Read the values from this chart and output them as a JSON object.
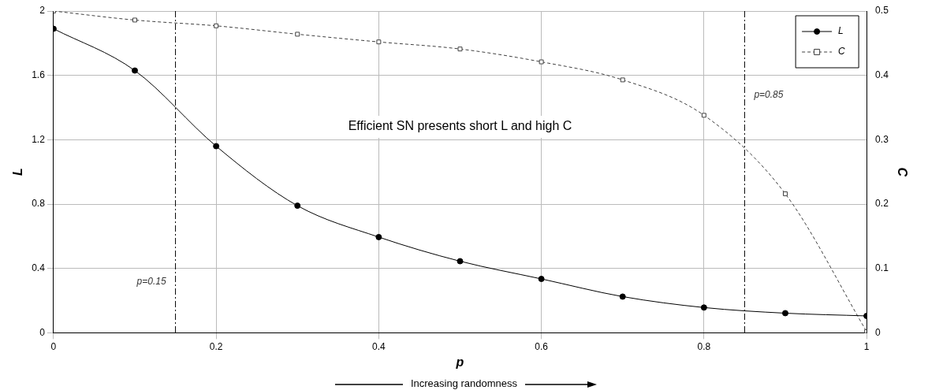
{
  "chart_data": {
    "type": "line",
    "x": [
      0,
      0.1,
      0.2,
      0.3,
      0.4,
      0.5,
      0.6,
      0.7,
      0.8,
      0.9,
      1
    ],
    "series": [
      {
        "name": "L",
        "color": "#000000",
        "marker": "circle",
        "line_style": "solid",
        "values": [
          1.89,
          1.63,
          1.16,
          0.79,
          0.595,
          0.445,
          0.335,
          0.225,
          0.157,
          0.122,
          0.105
        ]
      },
      {
        "name": "C",
        "color": "#404040",
        "marker": "square",
        "line_style": "dashed",
        "axis": "y2",
        "values": [
          0.5,
          0.486,
          0.477,
          0.464,
          0.452,
          0.441,
          0.421,
          0.393,
          0.338,
          0.216,
          0.002
        ]
      }
    ],
    "xlabel": "p",
    "ylabel": "L",
    "y2label": "C",
    "xlim": [
      0,
      1
    ],
    "xticks": [
      0,
      0.2,
      0.4,
      0.6,
      0.8,
      1
    ],
    "ylim": [
      0,
      2
    ],
    "yticks": [
      0,
      0.4,
      0.8,
      1.2,
      1.6,
      2
    ],
    "y2lim": [
      0,
      0.5
    ],
    "y2ticks": [
      0,
      0.1,
      0.2,
      0.3,
      0.4,
      0.5
    ],
    "ref_lines": [
      {
        "axis": "x",
        "value": 0.15,
        "label": "p=0.15",
        "color": "#000000",
        "line_style": "dashed"
      },
      {
        "axis": "x",
        "value": 0.85,
        "label": "p=0.85",
        "color": "#000000",
        "line_style": "dashed"
      }
    ],
    "annotations": [
      "Efficient SN presents short L and high C",
      "Increasing randomness"
    ],
    "grid": true,
    "legend": "top right"
  }
}
